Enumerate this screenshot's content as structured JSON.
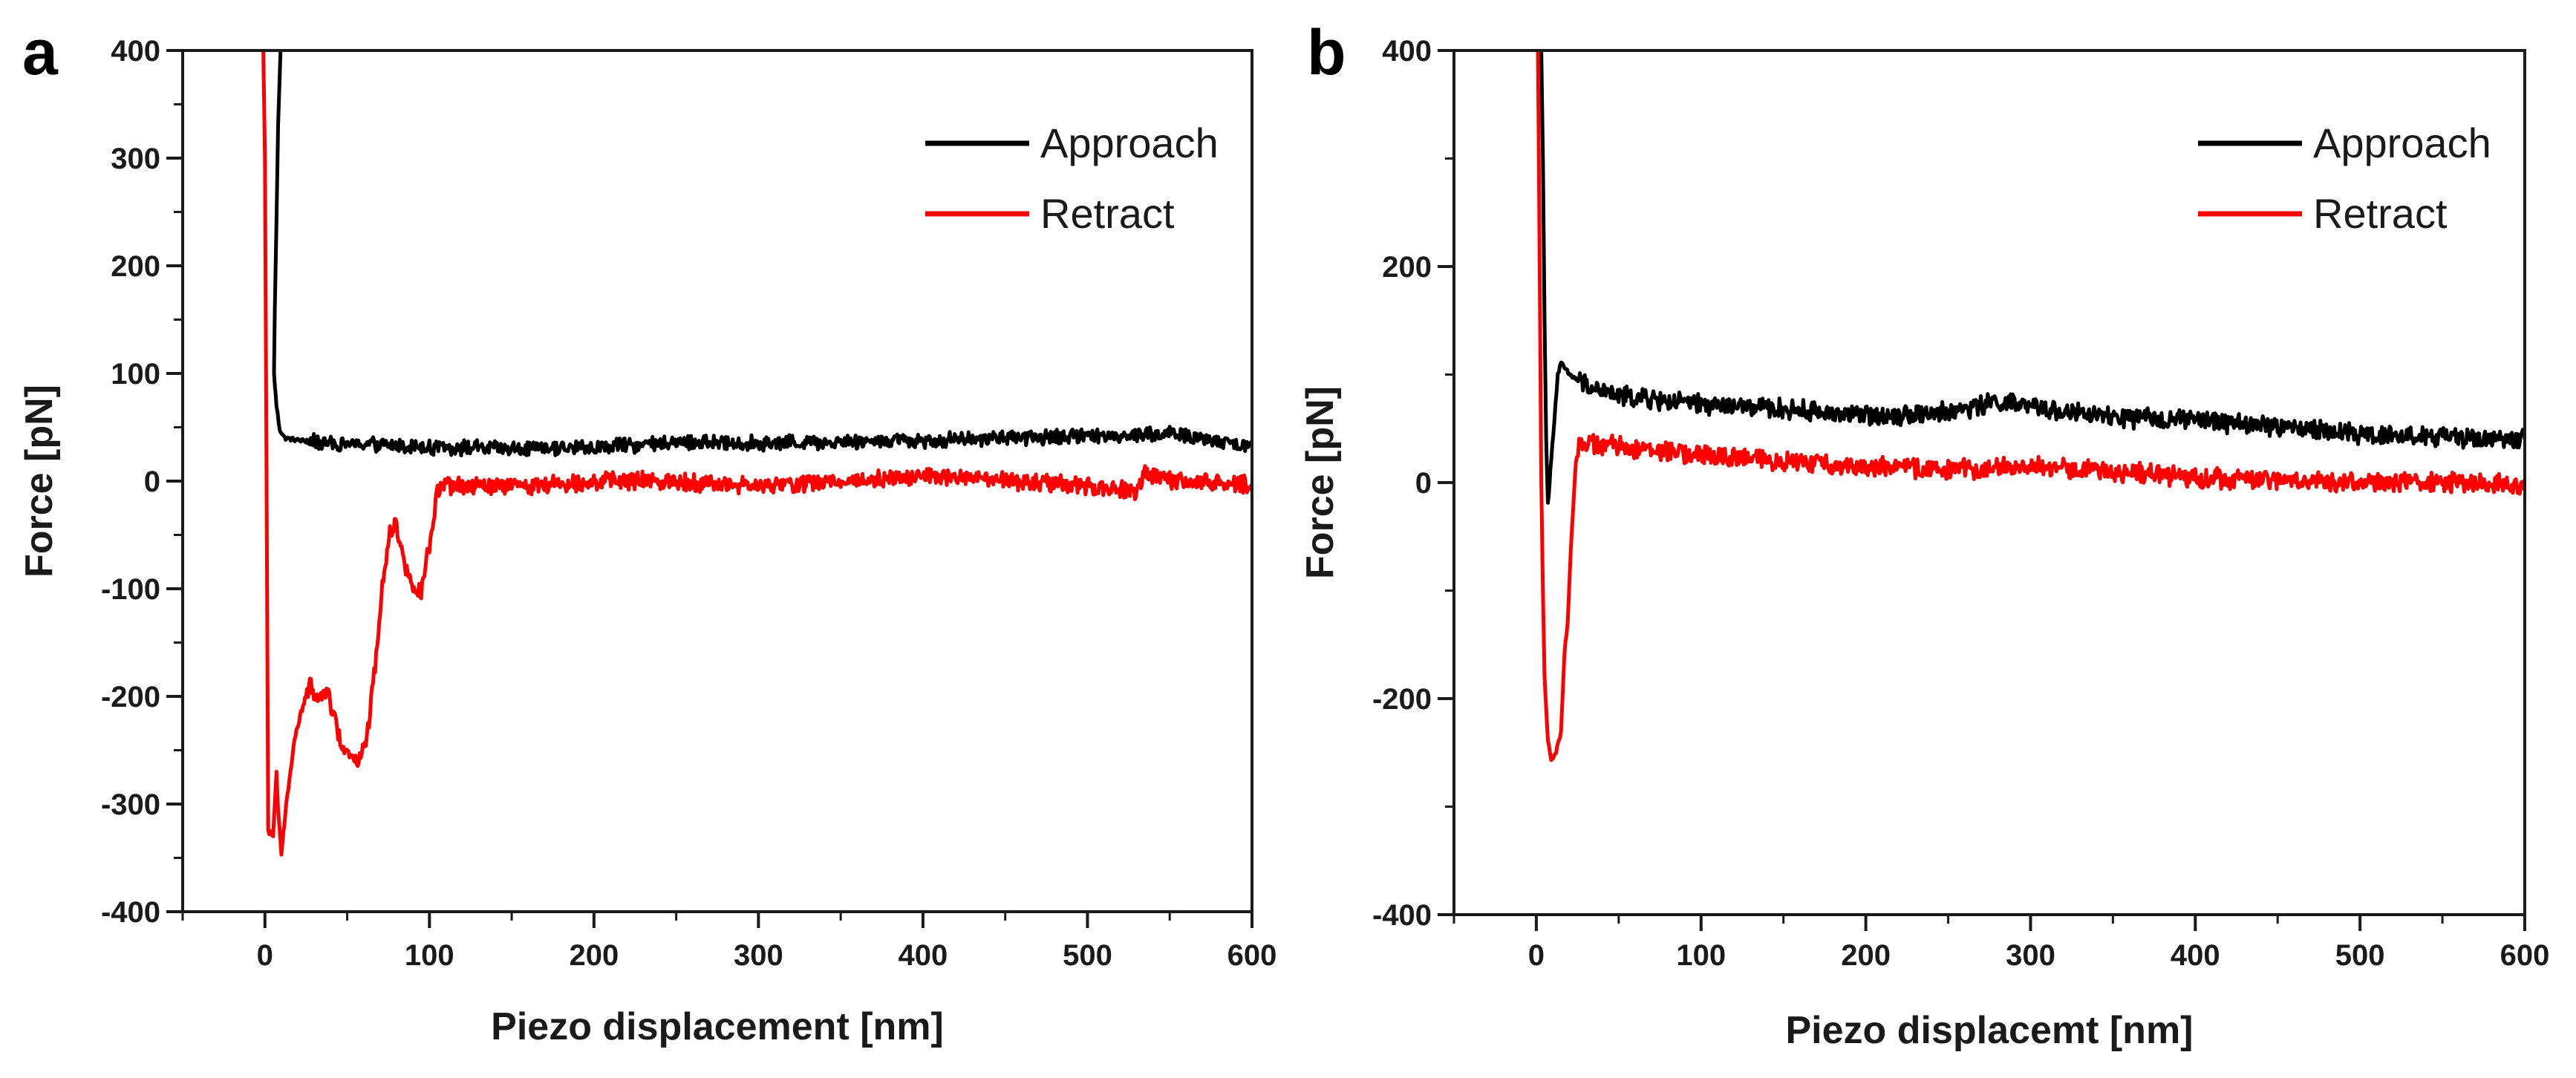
{
  "figure": {
    "panels": [
      "a",
      "b"
    ]
  },
  "chart_data": [
    {
      "panel_label": "a",
      "type": "line",
      "xlabel": "Piezo displacement [nm]",
      "ylabel": "Force [pN]",
      "xlim": [
        -50,
        600
      ],
      "ylim": [
        -400,
        400
      ],
      "xticks": [
        0,
        100,
        200,
        300,
        400,
        500,
        600
      ],
      "xtick_labels": [
        "0",
        "100",
        "200",
        "300",
        "400",
        "500",
        "600"
      ],
      "yticks": [
        -400,
        -300,
        -200,
        -100,
        0,
        100,
        200,
        300,
        400
      ],
      "ytick_labels": [
        "-400",
        "-300",
        "-200",
        "-100",
        "0",
        "100",
        "200",
        "300",
        "400"
      ],
      "legend_position": "top-right",
      "grid": false,
      "series": [
        {
          "name": "Approach",
          "color": "#000000",
          "noise": 6,
          "x": [
            9.5,
            8,
            7,
            6,
            5.5,
            7,
            9,
            12,
            20,
            40,
            100,
            150,
            200,
            250,
            300,
            350,
            400,
            450,
            500,
            550,
            600
          ],
          "y": [
            400,
            330,
            240,
            160,
            100,
            70,
            48,
            40,
            38,
            35,
            32,
            30,
            31,
            36,
            35,
            37,
            38,
            40,
            42,
            44,
            32
          ]
        },
        {
          "name": "Retract",
          "color": "#ff0000",
          "noise": 7,
          "x": [
            -1,
            0,
            1,
            2,
            5,
            7,
            8,
            10,
            13,
            18,
            22,
            25,
            28,
            31,
            34,
            38,
            42,
            47,
            52,
            57,
            62,
            67,
            72,
            76,
            80,
            85,
            90,
            95,
            100,
            105,
            110,
            150,
            200,
            250,
            300,
            350,
            400,
            450,
            500,
            530,
            535,
            540,
            550,
            600
          ],
          "y": [
            400,
            300,
            0,
            -325,
            -330,
            -270,
            -305,
            -345,
            -300,
            -240,
            -215,
            -200,
            -185,
            -205,
            -200,
            -195,
            -220,
            -245,
            -255,
            -260,
            -240,
            -170,
            -90,
            -45,
            -40,
            -80,
            -95,
            -105,
            -60,
            -10,
            -5,
            -5,
            0,
            0,
            -5,
            0,
            5,
            0,
            -5,
            -10,
            10,
            5,
            0,
            -3
          ]
        }
      ]
    },
    {
      "panel_label": "b",
      "type": "line",
      "xlabel": "Piezo displacemt [nm]",
      "ylabel": "Force [pN]",
      "xlim": [
        -50,
        600
      ],
      "ylim": [
        -400,
        400
      ],
      "xticks": [
        0,
        100,
        200,
        300,
        400,
        500,
        600
      ],
      "xtick_labels": [
        "0",
        "100",
        "200",
        "300",
        "400",
        "500",
        "600"
      ],
      "yticks": [
        -400,
        -200,
        0,
        200,
        400
      ],
      "ytick_labels": [
        "-400",
        "-200",
        "0",
        "200",
        "400"
      ],
      "legend_position": "top-right",
      "grid": false,
      "series": [
        {
          "name": "Approach",
          "color": "#000000",
          "noise": 8,
          "x": [
            3,
            4,
            5,
            6,
            7,
            8,
            9,
            11,
            13,
            15,
            20,
            30,
            50,
            100,
            150,
            200,
            250,
            280,
            300,
            350,
            400,
            450,
            500,
            550,
            600
          ],
          "y": [
            400,
            300,
            150,
            40,
            -20,
            0,
            20,
            60,
            100,
            110,
            100,
            90,
            80,
            72,
            68,
            62,
            65,
            75,
            70,
            60,
            58,
            52,
            45,
            42,
            40
          ]
        },
        {
          "name": "Retract",
          "color": "#ff0000",
          "noise": 8,
          "x": [
            1,
            2,
            3,
            4,
            5,
            7,
            9,
            12,
            15,
            17,
            19,
            21,
            24,
            26,
            28,
            40,
            60,
            100,
            150,
            200,
            250,
            300,
            350,
            400,
            450,
            500,
            550,
            600
          ],
          "y": [
            400,
            200,
            0,
            -100,
            -180,
            -240,
            -255,
            -250,
            -230,
            -160,
            -130,
            -60,
            20,
            38,
            35,
            35,
            32,
            25,
            20,
            15,
            12,
            15,
            10,
            5,
            2,
            0,
            0,
            -2
          ]
        }
      ]
    }
  ]
}
